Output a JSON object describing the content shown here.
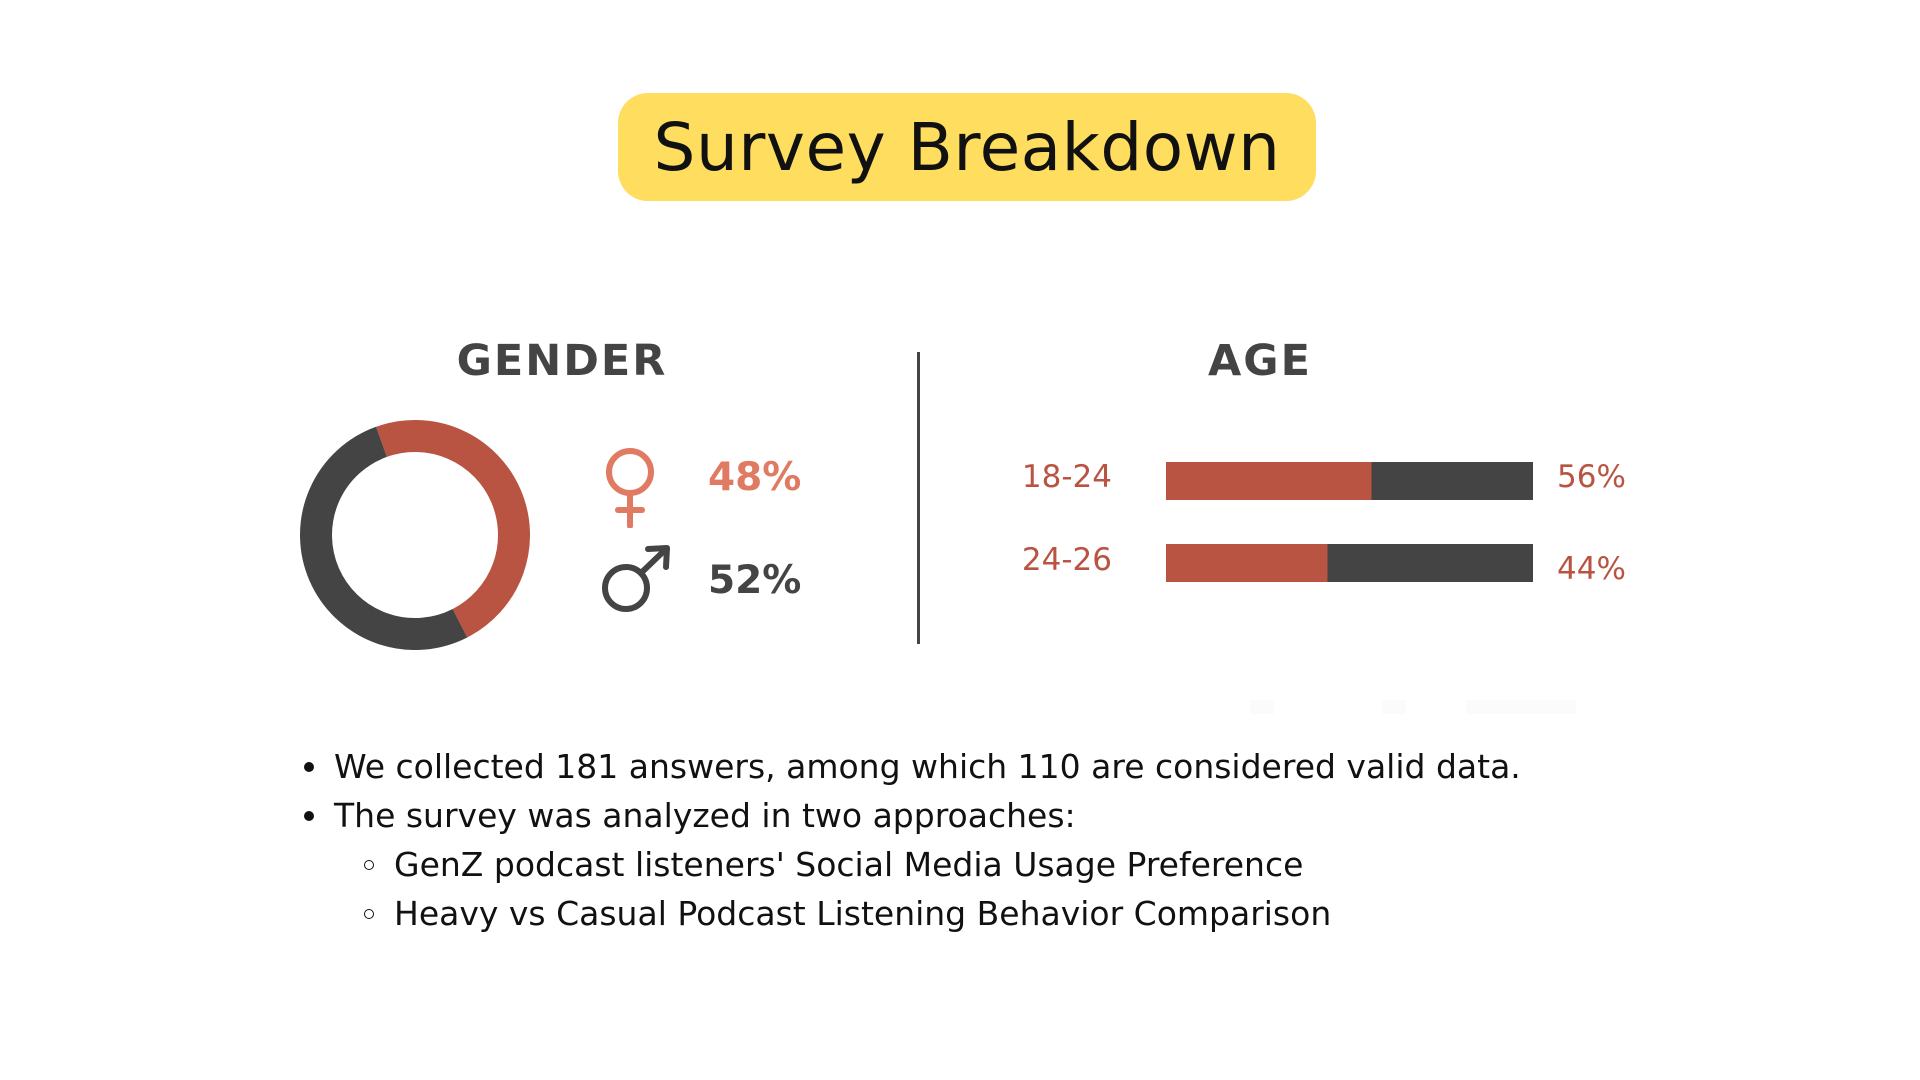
{
  "title": "Survey Breakdown",
  "colors": {
    "title_background": "#FEDD5F",
    "accent": "#B85441",
    "accent_light": "#E07A62",
    "dark": "#444444",
    "text": "#111111"
  },
  "chart_data": [
    {
      "type": "pie",
      "title": "GENDER",
      "style": "donut",
      "categories": [
        "female",
        "male"
      ],
      "values": [
        48,
        52
      ],
      "labels": [
        "48%",
        "52%"
      ],
      "icons": [
        "female-symbol-icon",
        "male-symbol-icon"
      ]
    },
    {
      "type": "bar",
      "orientation": "horizontal",
      "stacked": true,
      "title": "AGE",
      "categories": [
        "18-24",
        "24-26"
      ],
      "values": [
        56,
        44
      ],
      "labels": [
        "56%",
        "44%"
      ],
      "xlim": [
        0,
        100
      ]
    }
  ],
  "bullets": [
    {
      "level": 1,
      "text": "We collected 181 answers, among which 110 are considered valid data."
    },
    {
      "level": 1,
      "text": "The survey was analyzed in two approaches:"
    },
    {
      "level": 2,
      "text": "GenZ podcast listeners' Social Media Usage Preference"
    },
    {
      "level": 2,
      "text": "Heavy vs Casual Podcast Listening Behavior Comparison"
    }
  ]
}
